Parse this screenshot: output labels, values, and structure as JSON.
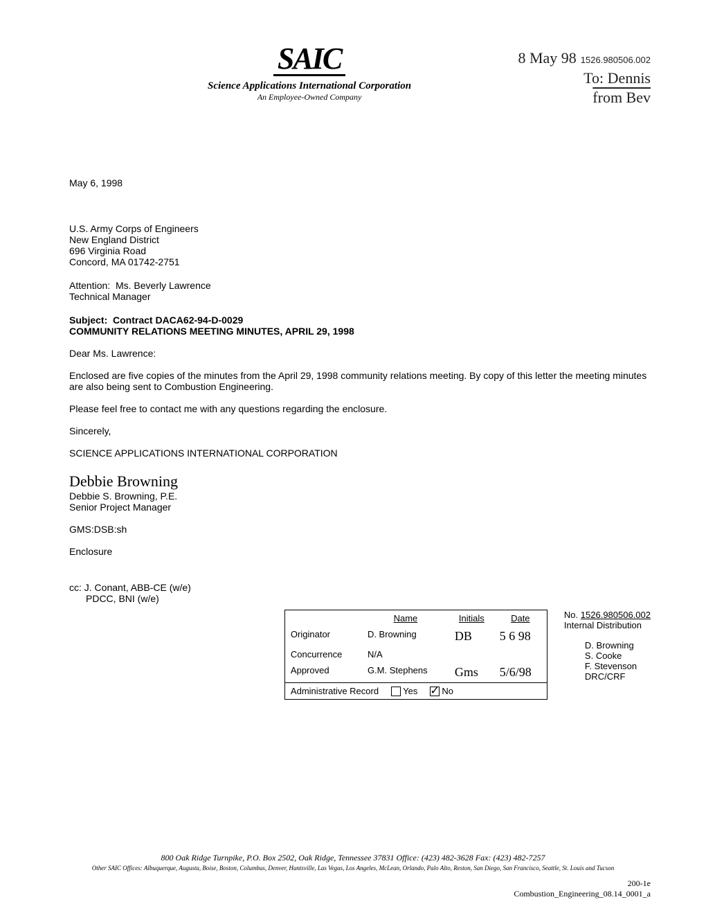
{
  "header": {
    "logo_text": "SAIC",
    "tagline": "Science Applications International Corporation",
    "subline": "An Employee-Owned Company",
    "hand_date": "8 May 98",
    "doc_number": "1526.980506.002",
    "hand_to": "To: Dennis",
    "hand_from": "from Bev"
  },
  "date": "May 6, 1998",
  "address": {
    "line1": "U.S. Army Corps of Engineers",
    "line2": "New England District",
    "line3": "696 Virginia Road",
    "line4": "Concord, MA  01742-2751"
  },
  "attention": {
    "label": "Attention:",
    "name": "Ms. Beverly Lawrence",
    "title": "Technical Manager"
  },
  "subject": {
    "label": "Subject:",
    "line1": "Contract DACA62-94-D-0029",
    "line2": "COMMUNITY RELATIONS MEETING MINUTES, APRIL 29, 1998"
  },
  "salutation": "Dear Ms. Lawrence:",
  "para1": "Enclosed are five copies of the minutes from the April 29, 1998 community relations meeting.  By copy of this letter the meeting minutes are also being sent to Combustion Engineering.",
  "para2": "Please feel free to contact me with any questions regarding the enclosure.",
  "closing": "Sincerely,",
  "company": "SCIENCE APPLICATIONS INTERNATIONAL CORPORATION",
  "signature_script": "Debbie Browning",
  "signature_name": "Debbie S. Browning, P.E.",
  "signature_title": "Senior Project Manager",
  "ref": "GMS:DSB:sh",
  "enclosure": "Enclosure",
  "cc": {
    "label": "cc:",
    "line1": "J. Conant, ABB-CE (w/e)",
    "line2": "PDCC, BNI (w/e)"
  },
  "sign_table": {
    "col_name": "Name",
    "col_initials": "Initials",
    "col_date": "Date",
    "originator_label": "Originator",
    "originator_name": "D. Browning",
    "originator_initials": "DB",
    "originator_date": "5 6 98",
    "concurrence_label": "Concurrence",
    "concurrence_name": "N/A",
    "approved_label": "Approved",
    "approved_name": "G.M. Stephens",
    "approved_initials": "Gms",
    "approved_date": "5/6/98",
    "admin_label": "Administrative Record",
    "yes": "Yes",
    "no": "No"
  },
  "distribution": {
    "no_label": "No.",
    "no_value": "1526.980506.002",
    "title": "Internal Distribution",
    "p1": "D. Browning",
    "p2": "S. Cooke",
    "p3": "F. Stevenson",
    "p4": "DRC/CRF"
  },
  "footer": {
    "main": "800 Oak Ridge Turnpike, P.O. Box 2502, Oak Ridge, Tennessee  37831    Office:  (423) 482-3628   Fax:  (423) 482-7257",
    "sub": "Other SAIC Offices:  Albuquerque, Augusta, Boise, Boston, Columbus, Denver, Huntsville, Las Vegas, Los Angeles, McLean, Orlando, Palo Alto, Reston, San Diego, San Francisco, Seattle, St. Louis and Tucson"
  },
  "page_id": {
    "l1": "200-1e",
    "l2": "Combustion_Engineering_08.14_0001_a"
  }
}
